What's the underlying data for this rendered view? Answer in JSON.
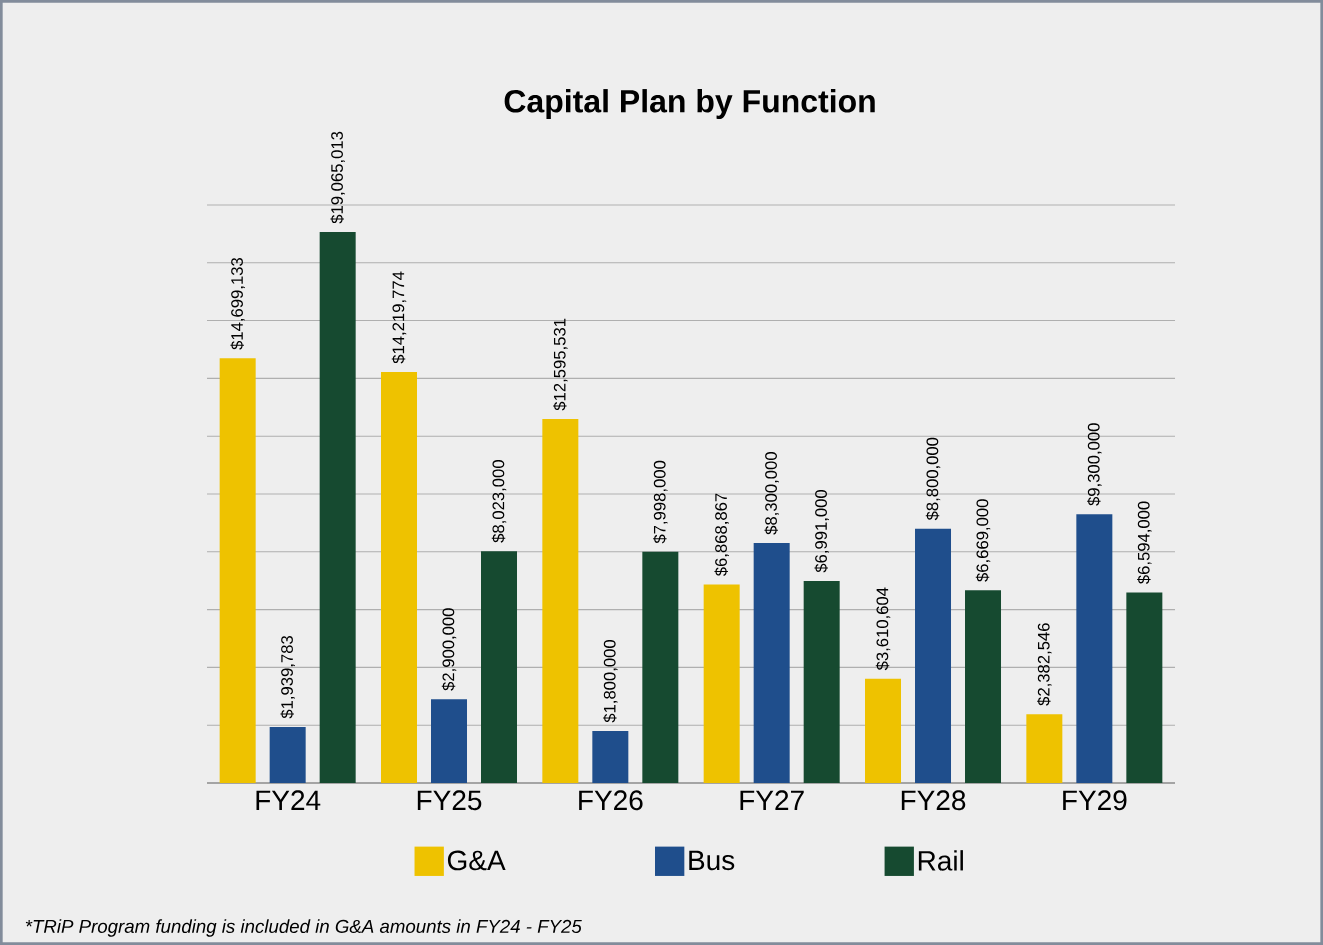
{
  "chart_data": {
    "type": "bar",
    "title": "Capital Plan by Function",
    "categories": [
      "FY24",
      "FY25",
      "FY26",
      "FY27",
      "FY28",
      "FY29"
    ],
    "series": [
      {
        "name": "G&A",
        "color": "#eec200",
        "values": [
          14699133,
          14219774,
          12595531,
          6868867,
          3610604,
          2382546
        ],
        "value_labels": [
          "$14,699,133",
          "$14,219,774",
          "$12,595,531",
          "$6,868,867",
          "$3,610,604",
          "$2,382,546"
        ]
      },
      {
        "name": "Bus",
        "color": "#1f4e8c",
        "values": [
          1939783,
          2900000,
          1800000,
          8300000,
          8800000,
          9300000
        ],
        "value_labels": [
          "$1,939,783",
          "$2,900,000",
          "$1,800,000",
          "$8,300,000",
          "$8,800,000",
          "$9,300,000"
        ]
      },
      {
        "name": "Rail",
        "color": "#164a30",
        "values": [
          19065013,
          8023000,
          7998000,
          6991000,
          6669000,
          6594000
        ],
        "value_labels": [
          "$19,065,013",
          "$8,023,000",
          "$7,998,000",
          "$6,991,000",
          "$6,669,000",
          "$6,594,000"
        ]
      }
    ],
    "ylim": [
      0,
      20000000
    ],
    "grid": "y",
    "legend": "bottom",
    "tick_labels": "x",
    "annotations": [
      "*TRiP Program funding is included in G&A amounts in FY24 - FY25"
    ]
  }
}
